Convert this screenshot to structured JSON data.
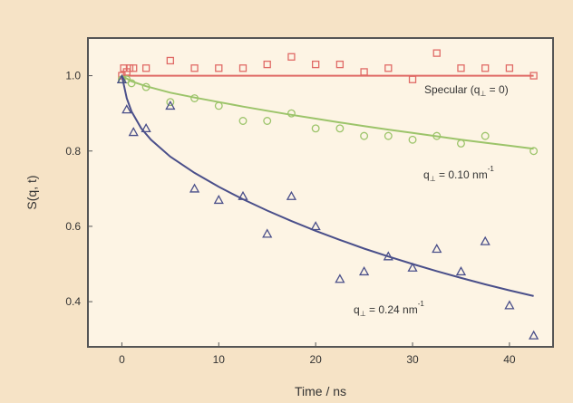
{
  "colors": {
    "background": "#f6e3c6",
    "plot_area": "#fdf4e4",
    "frame": "#555555",
    "specular": "#e06a66",
    "q010": "#9cc46a",
    "q024": "#4a4f8a"
  },
  "chart_data": {
    "type": "scatter",
    "title": "",
    "xlabel": "Time / ns",
    "ylabel": "S(q, t)",
    "xlim": [
      -3.5,
      44.5
    ],
    "ylim": [
      0.28,
      1.1
    ],
    "x_ticks": [
      0,
      10,
      20,
      30,
      40
    ],
    "y_ticks": [
      0.4,
      0.6,
      0.8,
      1.0
    ],
    "x_tick_labels": [
      "0",
      "10",
      "20",
      "30",
      "40"
    ],
    "y_tick_labels": [
      "0.4",
      "0.6",
      "0.8",
      "1.0"
    ],
    "grid": false,
    "series": [
      {
        "key": "specular",
        "marker": "square",
        "label_parts": [
          "Specular (q",
          "⊥",
          " = 0)"
        ],
        "points": [
          [
            0,
            1.0
          ],
          [
            0.2,
            1.02
          ],
          [
            0.5,
            1.01
          ],
          [
            0.8,
            1.02
          ],
          [
            1.2,
            1.02
          ],
          [
            2.5,
            1.02
          ],
          [
            5,
            1.04
          ],
          [
            7.5,
            1.02
          ],
          [
            10,
            1.02
          ],
          [
            12.5,
            1.02
          ],
          [
            15,
            1.03
          ],
          [
            17.5,
            1.05
          ],
          [
            20,
            1.03
          ],
          [
            22.5,
            1.03
          ],
          [
            25,
            1.01
          ],
          [
            27.5,
            1.02
          ],
          [
            30,
            0.99
          ],
          [
            32.5,
            1.06
          ],
          [
            35,
            1.02
          ],
          [
            37.5,
            1.02
          ],
          [
            40,
            1.02
          ],
          [
            42.5,
            1.0
          ]
        ],
        "fit": [
          [
            0,
            1.0
          ],
          [
            42.5,
            1.0
          ]
        ]
      },
      {
        "key": "q010",
        "marker": "circle",
        "label_parts": [
          "q",
          "⊥",
          " = 0.10 nm",
          "-1"
        ],
        "points": [
          [
            0,
            0.99
          ],
          [
            0.5,
            0.99
          ],
          [
            1,
            0.98
          ],
          [
            2.5,
            0.97
          ],
          [
            5,
            0.93
          ],
          [
            7.5,
            0.94
          ],
          [
            10,
            0.92
          ],
          [
            12.5,
            0.88
          ],
          [
            15,
            0.88
          ],
          [
            17.5,
            0.9
          ],
          [
            20,
            0.86
          ],
          [
            22.5,
            0.86
          ],
          [
            25,
            0.84
          ],
          [
            27.5,
            0.84
          ],
          [
            30,
            0.83
          ],
          [
            32.5,
            0.84
          ],
          [
            35,
            0.82
          ],
          [
            37.5,
            0.84
          ],
          [
            42.5,
            0.8
          ]
        ],
        "fit": [
          [
            0,
            1.0
          ],
          [
            1,
            0.985
          ],
          [
            2.5,
            0.972
          ],
          [
            5,
            0.955
          ],
          [
            7.5,
            0.942
          ],
          [
            10,
            0.93
          ],
          [
            12.5,
            0.918
          ],
          [
            15,
            0.907
          ],
          [
            17.5,
            0.896
          ],
          [
            20,
            0.886
          ],
          [
            22.5,
            0.876
          ],
          [
            25,
            0.866
          ],
          [
            27.5,
            0.857
          ],
          [
            30,
            0.848
          ],
          [
            32.5,
            0.839
          ],
          [
            35,
            0.83
          ],
          [
            37.5,
            0.822
          ],
          [
            40,
            0.814
          ],
          [
            42.5,
            0.806
          ]
        ]
      },
      {
        "key": "q024",
        "marker": "triangle",
        "label_parts": [
          "q",
          "⊥",
          " = 0.24 nm",
          "-1"
        ],
        "points": [
          [
            0,
            0.99
          ],
          [
            0.5,
            0.91
          ],
          [
            1.2,
            0.85
          ],
          [
            2.5,
            0.86
          ],
          [
            5,
            0.92
          ],
          [
            7.5,
            0.7
          ],
          [
            10,
            0.67
          ],
          [
            12.5,
            0.68
          ],
          [
            15,
            0.58
          ],
          [
            17.5,
            0.68
          ],
          [
            20,
            0.6
          ],
          [
            22.5,
            0.46
          ],
          [
            25,
            0.48
          ],
          [
            27.5,
            0.52
          ],
          [
            30,
            0.49
          ],
          [
            32.5,
            0.54
          ],
          [
            35,
            0.48
          ],
          [
            37.5,
            0.56
          ],
          [
            40,
            0.39
          ],
          [
            42.5,
            0.31
          ]
        ],
        "fit": [
          [
            0,
            1.0
          ],
          [
            0.5,
            0.94
          ],
          [
            1,
            0.905
          ],
          [
            2,
            0.86
          ],
          [
            3,
            0.83
          ],
          [
            5,
            0.785
          ],
          [
            7.5,
            0.742
          ],
          [
            10,
            0.705
          ],
          [
            12.5,
            0.672
          ],
          [
            15,
            0.642
          ],
          [
            17.5,
            0.614
          ],
          [
            20,
            0.588
          ],
          [
            22.5,
            0.564
          ],
          [
            25,
            0.541
          ],
          [
            27.5,
            0.52
          ],
          [
            30,
            0.5
          ],
          [
            32.5,
            0.481
          ],
          [
            35,
            0.463
          ],
          [
            37.5,
            0.446
          ],
          [
            40,
            0.43
          ],
          [
            42.5,
            0.415
          ]
        ]
      }
    ]
  }
}
